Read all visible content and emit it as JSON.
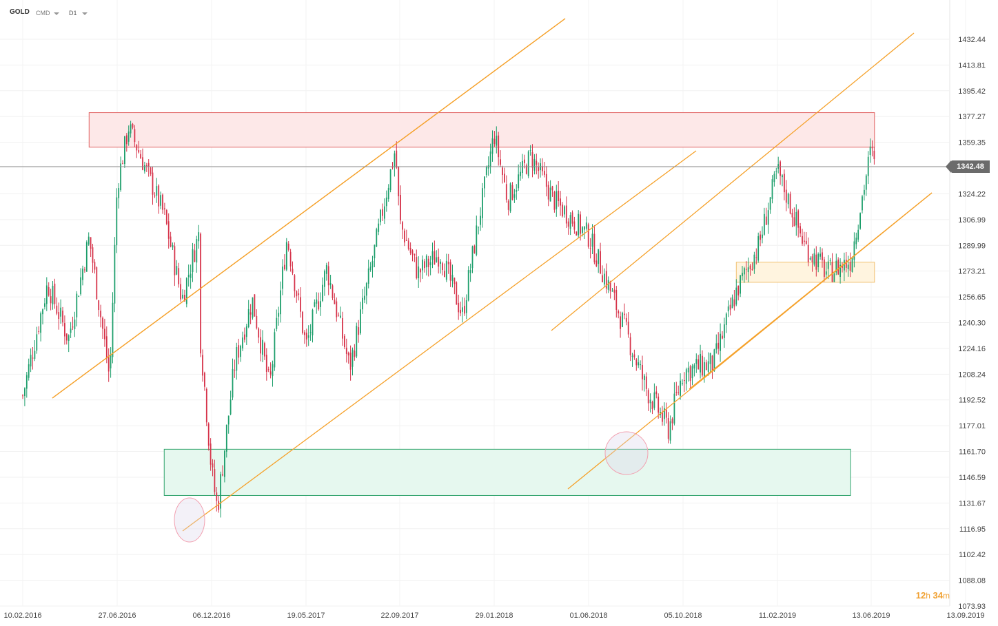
{
  "header": {
    "symbol": "GOLD",
    "market": "CMD",
    "timeframe": "D1"
  },
  "timer": {
    "hours": "12",
    "h": "h",
    "minutes": "34",
    "m": "m"
  },
  "last_price": "1342.48",
  "colors": {
    "up": "#1d9e6b",
    "down": "#d6334a",
    "trend": "#f5a12a",
    "resistance_fill": "#fde8e8",
    "resistance_stroke": "#e06060",
    "support_fill": "#e6f8ef",
    "support_stroke": "#2fa36b",
    "zone_fill": "#fff4df",
    "zone_stroke": "#f0c070"
  },
  "chart_data": {
    "type": "candlestick",
    "symbol": "GOLD",
    "timeframe": "D1",
    "y_ticks": [
      "1432.44",
      "1413.81",
      "1395.42",
      "1377.27",
      "1359.35",
      "1342.48",
      "1324.22",
      "1306.99",
      "1289.99",
      "1273.21",
      "1256.65",
      "1240.30",
      "1224.16",
      "1208.24",
      "1192.52",
      "1177.01",
      "1161.70",
      "1146.59",
      "1131.67",
      "1116.95",
      "1102.42",
      "1088.08",
      "1073.93"
    ],
    "x_ticks": [
      "10.02.2016",
      "27.06.2016",
      "06.12.2016",
      "19.05.2017",
      "22.09.2017",
      "29.01.2018",
      "01.06.2018",
      "05.10.2018",
      "11.02.2019",
      "13.06.2019",
      "13.09.2019"
    ],
    "ylim": [
      1073.93,
      1432.44
    ],
    "last_price": 1342.48,
    "zones": [
      {
        "kind": "resistance",
        "from": "05.2016",
        "to": "06.2019",
        "low": 1356,
        "high": 1380
      },
      {
        "kind": "support",
        "from": "09.2016",
        "to": "05.2019",
        "low": 1136,
        "high": 1163
      },
      {
        "kind": "demand",
        "from": "12.2018",
        "to": "06.2019",
        "low": 1266,
        "high": 1279
      }
    ],
    "trendlines": 7,
    "price_path": [
      [
        "10.02.2016",
        1195
      ],
      [
        "03.2016",
        1265
      ],
      [
        "04.2016",
        1230
      ],
      [
        "05.2016",
        1295
      ],
      [
        "06.2016",
        1205
      ],
      [
        "27.06.2016",
        1330
      ],
      [
        "07.2016",
        1370
      ],
      [
        "08.2016",
        1340
      ],
      [
        "09.2016",
        1310
      ],
      [
        "10.2016",
        1255
      ],
      [
        "11.2016",
        1300
      ],
      [
        "11.2016",
        1235
      ],
      [
        "06.12.2016",
        1150
      ],
      [
        "12.2016",
        1128
      ],
      [
        "01.2017",
        1215
      ],
      [
        "02.2017",
        1255
      ],
      [
        "03.2017",
        1200
      ],
      [
        "04.2017",
        1295
      ],
      [
        "19.05.2017",
        1225
      ],
      [
        "06.2017",
        1275
      ],
      [
        "07.2017",
        1212
      ],
      [
        "08.2017",
        1280
      ],
      [
        "09.2017",
        1355
      ],
      [
        "22.09.2017",
        1305
      ],
      [
        "10.2017",
        1272
      ],
      [
        "11.2017",
        1285
      ],
      [
        "12.2017",
        1245
      ],
      [
        "29.01.2018",
        1365
      ],
      [
        "02.2018",
        1320
      ],
      [
        "03.2018",
        1350
      ],
      [
        "04.2018",
        1320
      ],
      [
        "01.06.2018",
        1296
      ],
      [
        "07.2018",
        1240
      ],
      [
        "08.2018",
        1200
      ],
      [
        "09.2018",
        1175
      ],
      [
        "05.10.2018",
        1210
      ],
      [
        "11.2018",
        1215
      ],
      [
        "12.2018",
        1260
      ],
      [
        "01.2019",
        1290
      ],
      [
        "11.02.2019",
        1340
      ],
      [
        "03.2019",
        1290
      ],
      [
        "04.2019",
        1272
      ],
      [
        "05.2019",
        1280
      ],
      [
        "13.06.2019",
        1355
      ],
      [
        "06.2019",
        1342.48
      ]
    ]
  }
}
